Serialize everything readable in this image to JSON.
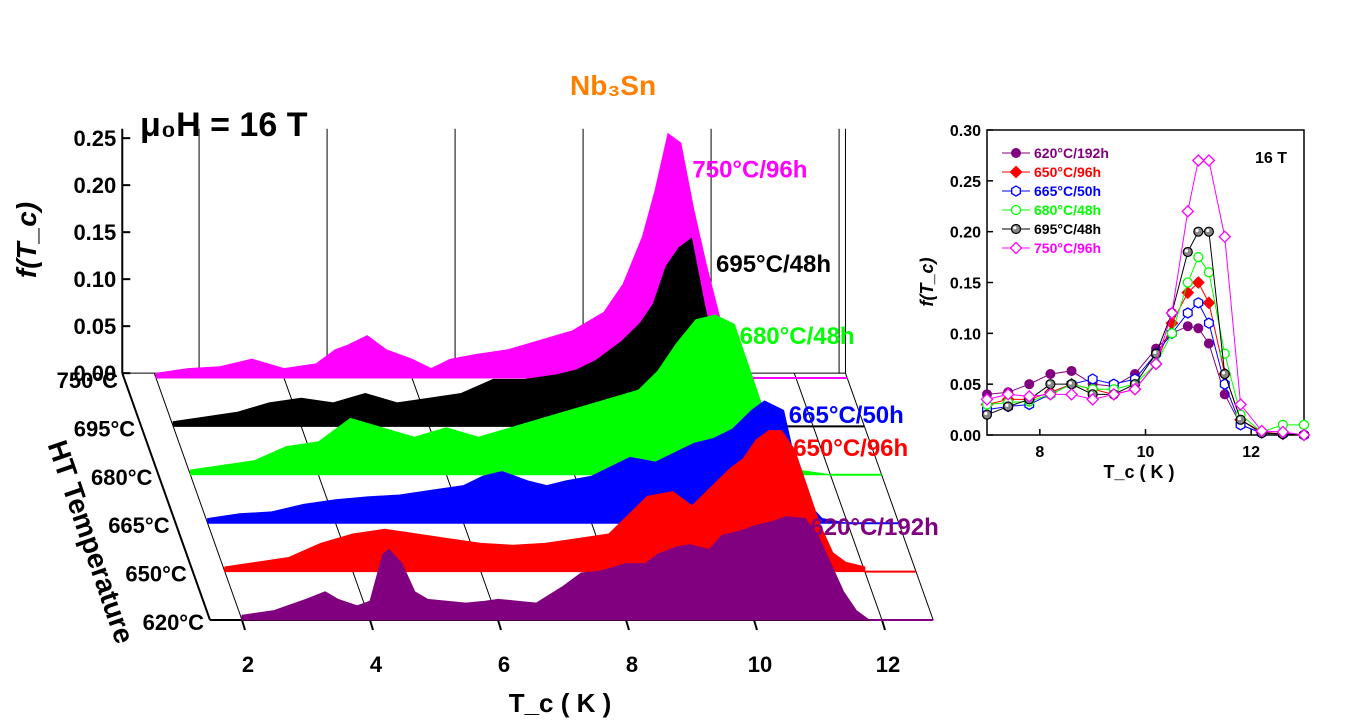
{
  "chart_data": [
    {
      "type": "area",
      "view": "3d-waterfall",
      "annotations": {
        "field": "μ₀H = 16 T",
        "material": "Nb₃Sn"
      },
      "xlabel": "T_c ( K )",
      "ylabel": "f(T_c)",
      "zlabel": "HT Temperature",
      "xlim": [
        1.5,
        12.8
      ],
      "ylim": [
        0,
        0.26
      ],
      "x_ticks": [
        "2",
        "4",
        "6",
        "8",
        "10",
        "12"
      ],
      "y_ticks": [
        "0.00",
        "0.05",
        "0.10",
        "0.15",
        "0.20",
        "0.25"
      ],
      "z_ticks": [
        "620°C",
        "650°C",
        "665°C",
        "680°C",
        "695°C",
        "750°C"
      ],
      "grid": true,
      "series": [
        {
          "name": "620°C/192h",
          "color": "#800080",
          "x": [
            2.0,
            2.5,
            3.0,
            3.3,
            3.5,
            3.8,
            4.0,
            4.2,
            4.3,
            4.5,
            4.7,
            4.9,
            5.2,
            5.5,
            5.8,
            6.0,
            6.3,
            6.6,
            7.0,
            7.3,
            7.6,
            8.0,
            8.3,
            8.5,
            8.8,
            9.0,
            9.3,
            9.5,
            9.8,
            10.0,
            10.3,
            10.5,
            10.8,
            11.0,
            11.2,
            11.4,
            11.6,
            11.8
          ],
          "y": [
            0.005,
            0.01,
            0.022,
            0.03,
            0.022,
            0.015,
            0.02,
            0.07,
            0.075,
            0.06,
            0.03,
            0.022,
            0.02,
            0.018,
            0.02,
            0.022,
            0.02,
            0.018,
            0.035,
            0.05,
            0.052,
            0.06,
            0.06,
            0.07,
            0.078,
            0.08,
            0.075,
            0.09,
            0.095,
            0.1,
            0.105,
            0.11,
            0.108,
            0.09,
            0.06,
            0.03,
            0.01,
            0.0
          ]
        },
        {
          "name": "650°C/96h",
          "color": "#ff0000",
          "x": [
            2.0,
            2.5,
            3.0,
            3.5,
            4.0,
            4.5,
            5.0,
            5.5,
            6.0,
            6.5,
            7.0,
            7.5,
            8.0,
            8.3,
            8.6,
            9.0,
            9.3,
            9.6,
            9.9,
            10.1,
            10.3,
            10.5,
            10.7,
            10.9,
            11.1,
            11.3,
            11.5,
            11.7,
            12.0
          ],
          "y": [
            0.005,
            0.01,
            0.015,
            0.03,
            0.04,
            0.045,
            0.04,
            0.035,
            0.03,
            0.028,
            0.03,
            0.035,
            0.04,
            0.06,
            0.08,
            0.085,
            0.07,
            0.09,
            0.11,
            0.12,
            0.14,
            0.15,
            0.15,
            0.13,
            0.09,
            0.05,
            0.02,
            0.01,
            0.005
          ]
        },
        {
          "name": "665°C/50h",
          "color": "#0000ff",
          "x": [
            2.0,
            2.5,
            3.0,
            3.5,
            4.0,
            4.5,
            5.0,
            5.5,
            6.0,
            6.3,
            6.6,
            7.0,
            7.3,
            7.6,
            8.0,
            8.3,
            8.6,
            9.0,
            9.3,
            9.6,
            9.9,
            10.2,
            10.5,
            10.7,
            11.0,
            11.2,
            11.4,
            11.6,
            12.0
          ],
          "y": [
            0.005,
            0.01,
            0.012,
            0.02,
            0.025,
            0.028,
            0.03,
            0.035,
            0.04,
            0.05,
            0.055,
            0.045,
            0.04,
            0.045,
            0.05,
            0.06,
            0.07,
            0.065,
            0.075,
            0.085,
            0.09,
            0.1,
            0.12,
            0.13,
            0.12,
            0.06,
            0.02,
            0.005,
            0.0
          ]
        },
        {
          "name": "680°C/48h",
          "color": "#00ff00",
          "x": [
            2.0,
            2.5,
            3.0,
            3.5,
            4.0,
            4.5,
            5.0,
            5.5,
            6.0,
            6.5,
            7.0,
            7.5,
            8.0,
            8.5,
            9.0,
            9.3,
            9.6,
            9.9,
            10.2,
            10.5,
            10.7,
            10.9,
            11.1,
            11.3,
            11.5,
            12.0
          ],
          "y": [
            0.005,
            0.01,
            0.015,
            0.03,
            0.035,
            0.06,
            0.05,
            0.04,
            0.05,
            0.04,
            0.05,
            0.06,
            0.07,
            0.08,
            0.09,
            0.11,
            0.14,
            0.165,
            0.17,
            0.16,
            0.12,
            0.08,
            0.04,
            0.015,
            0.005,
            0.0
          ]
        },
        {
          "name": "695°C/48h",
          "color": "#000000",
          "x": [
            2.0,
            2.5,
            3.0,
            3.5,
            4.0,
            4.5,
            5.0,
            5.5,
            6.0,
            6.5,
            7.0,
            7.5,
            8.0,
            8.3,
            8.6,
            9.0,
            9.3,
            9.5,
            9.7,
            9.9,
            10.1,
            10.3,
            10.5,
            10.7,
            10.9,
            11.1
          ],
          "y": [
            0.005,
            0.01,
            0.015,
            0.025,
            0.03,
            0.025,
            0.035,
            0.025,
            0.03,
            0.035,
            0.05,
            0.05,
            0.055,
            0.06,
            0.07,
            0.09,
            0.11,
            0.13,
            0.17,
            0.19,
            0.2,
            0.13,
            0.07,
            0.03,
            0.01,
            0.0
          ]
        },
        {
          "name": "750°C/96h",
          "color": "#ff00ff",
          "x": [
            2.0,
            2.5,
            3.0,
            3.5,
            4.0,
            4.5,
            4.8,
            5.0,
            5.3,
            5.6,
            6.0,
            6.3,
            6.6,
            7.0,
            7.5,
            8.0,
            8.5,
            9.0,
            9.3,
            9.6,
            9.8,
            10.0,
            10.2,
            10.4,
            10.6,
            10.9,
            11.1
          ],
          "y": [
            0.005,
            0.01,
            0.012,
            0.02,
            0.01,
            0.015,
            0.03,
            0.035,
            0.045,
            0.03,
            0.02,
            0.01,
            0.02,
            0.025,
            0.03,
            0.04,
            0.05,
            0.07,
            0.1,
            0.15,
            0.2,
            0.26,
            0.25,
            0.18,
            0.12,
            0.04,
            0.0
          ]
        }
      ]
    },
    {
      "type": "line",
      "marker": "scatter",
      "xlabel": "T_c ( K )",
      "ylabel": "f(T_c)",
      "annotation": "16 T",
      "xlim": [
        7,
        13
      ],
      "ylim": [
        0,
        0.3
      ],
      "x_ticks": [
        "8",
        "10",
        "12"
      ],
      "y_ticks": [
        "0.00",
        "0.05",
        "0.10",
        "0.15",
        "0.20",
        "0.25",
        "0.30"
      ],
      "legend": "top-left",
      "series": [
        {
          "name": "620°C/192h",
          "color": "#800080",
          "marker": "filled-circle",
          "x": [
            7.0,
            7.4,
            7.8,
            8.2,
            8.6,
            9.0,
            9.4,
            9.8,
            10.2,
            10.5,
            10.8,
            11.0,
            11.2,
            11.5,
            11.8,
            12.2,
            12.6,
            13.0
          ],
          "y": [
            0.04,
            0.042,
            0.05,
            0.06,
            0.063,
            0.05,
            0.048,
            0.06,
            0.085,
            0.1,
            0.107,
            0.105,
            0.09,
            0.04,
            0.01,
            0.002,
            0.001,
            0.0
          ]
        },
        {
          "name": "650°C/96h",
          "color": "#ff0000",
          "marker": "filled-diamond",
          "x": [
            7.0,
            7.4,
            7.8,
            8.2,
            8.6,
            9.0,
            9.4,
            9.8,
            10.2,
            10.5,
            10.8,
            11.0,
            11.2,
            11.5,
            11.8,
            12.2,
            12.6,
            13.0
          ],
          "y": [
            0.03,
            0.035,
            0.035,
            0.042,
            0.05,
            0.045,
            0.04,
            0.045,
            0.07,
            0.11,
            0.14,
            0.15,
            0.13,
            0.06,
            0.015,
            0.003,
            0.001,
            0.0
          ]
        },
        {
          "name": "665°C/50h",
          "color": "#0000ff",
          "marker": "open-hexagon",
          "x": [
            7.0,
            7.4,
            7.8,
            8.2,
            8.6,
            9.0,
            9.4,
            9.8,
            10.2,
            10.5,
            10.8,
            11.0,
            11.2,
            11.5,
            11.8,
            12.2,
            12.6,
            13.0
          ],
          "y": [
            0.025,
            0.028,
            0.03,
            0.04,
            0.05,
            0.055,
            0.05,
            0.055,
            0.08,
            0.1,
            0.12,
            0.13,
            0.11,
            0.05,
            0.01,
            0.002,
            0.001,
            0.0
          ]
        },
        {
          "name": "680°C/48h",
          "color": "#00ff00",
          "marker": "open-circle",
          "x": [
            7.0,
            7.4,
            7.8,
            8.2,
            8.6,
            9.0,
            9.4,
            9.8,
            10.2,
            10.5,
            10.8,
            11.0,
            11.2,
            11.5,
            11.8,
            12.2,
            12.6,
            13.0
          ],
          "y": [
            0.03,
            0.032,
            0.033,
            0.04,
            0.05,
            0.045,
            0.045,
            0.05,
            0.07,
            0.1,
            0.15,
            0.175,
            0.16,
            0.08,
            0.02,
            0.003,
            0.01,
            0.01
          ]
        },
        {
          "name": "695°C/48h",
          "color": "#000000",
          "marker": "half-filled-circle",
          "x": [
            7.0,
            7.4,
            7.8,
            8.2,
            8.6,
            9.0,
            9.4,
            9.8,
            10.2,
            10.5,
            10.8,
            11.0,
            11.2,
            11.5,
            11.8,
            12.2,
            12.6,
            13.0
          ],
          "y": [
            0.02,
            0.028,
            0.035,
            0.05,
            0.05,
            0.04,
            0.04,
            0.05,
            0.08,
            0.12,
            0.18,
            0.2,
            0.2,
            0.06,
            0.015,
            0.002,
            0.001,
            0.0
          ]
        },
        {
          "name": "750°C/96h",
          "color": "#ff00ff",
          "marker": "open-diamond",
          "x": [
            7.0,
            7.4,
            7.8,
            8.2,
            8.6,
            9.0,
            9.4,
            9.8,
            10.2,
            10.5,
            10.8,
            11.0,
            11.2,
            11.5,
            11.8,
            12.2,
            12.6,
            13.0
          ],
          "y": [
            0.035,
            0.04,
            0.038,
            0.04,
            0.04,
            0.035,
            0.04,
            0.045,
            0.07,
            0.12,
            0.22,
            0.27,
            0.27,
            0.195,
            0.03,
            0.004,
            0.003,
            0.0
          ]
        }
      ]
    }
  ]
}
